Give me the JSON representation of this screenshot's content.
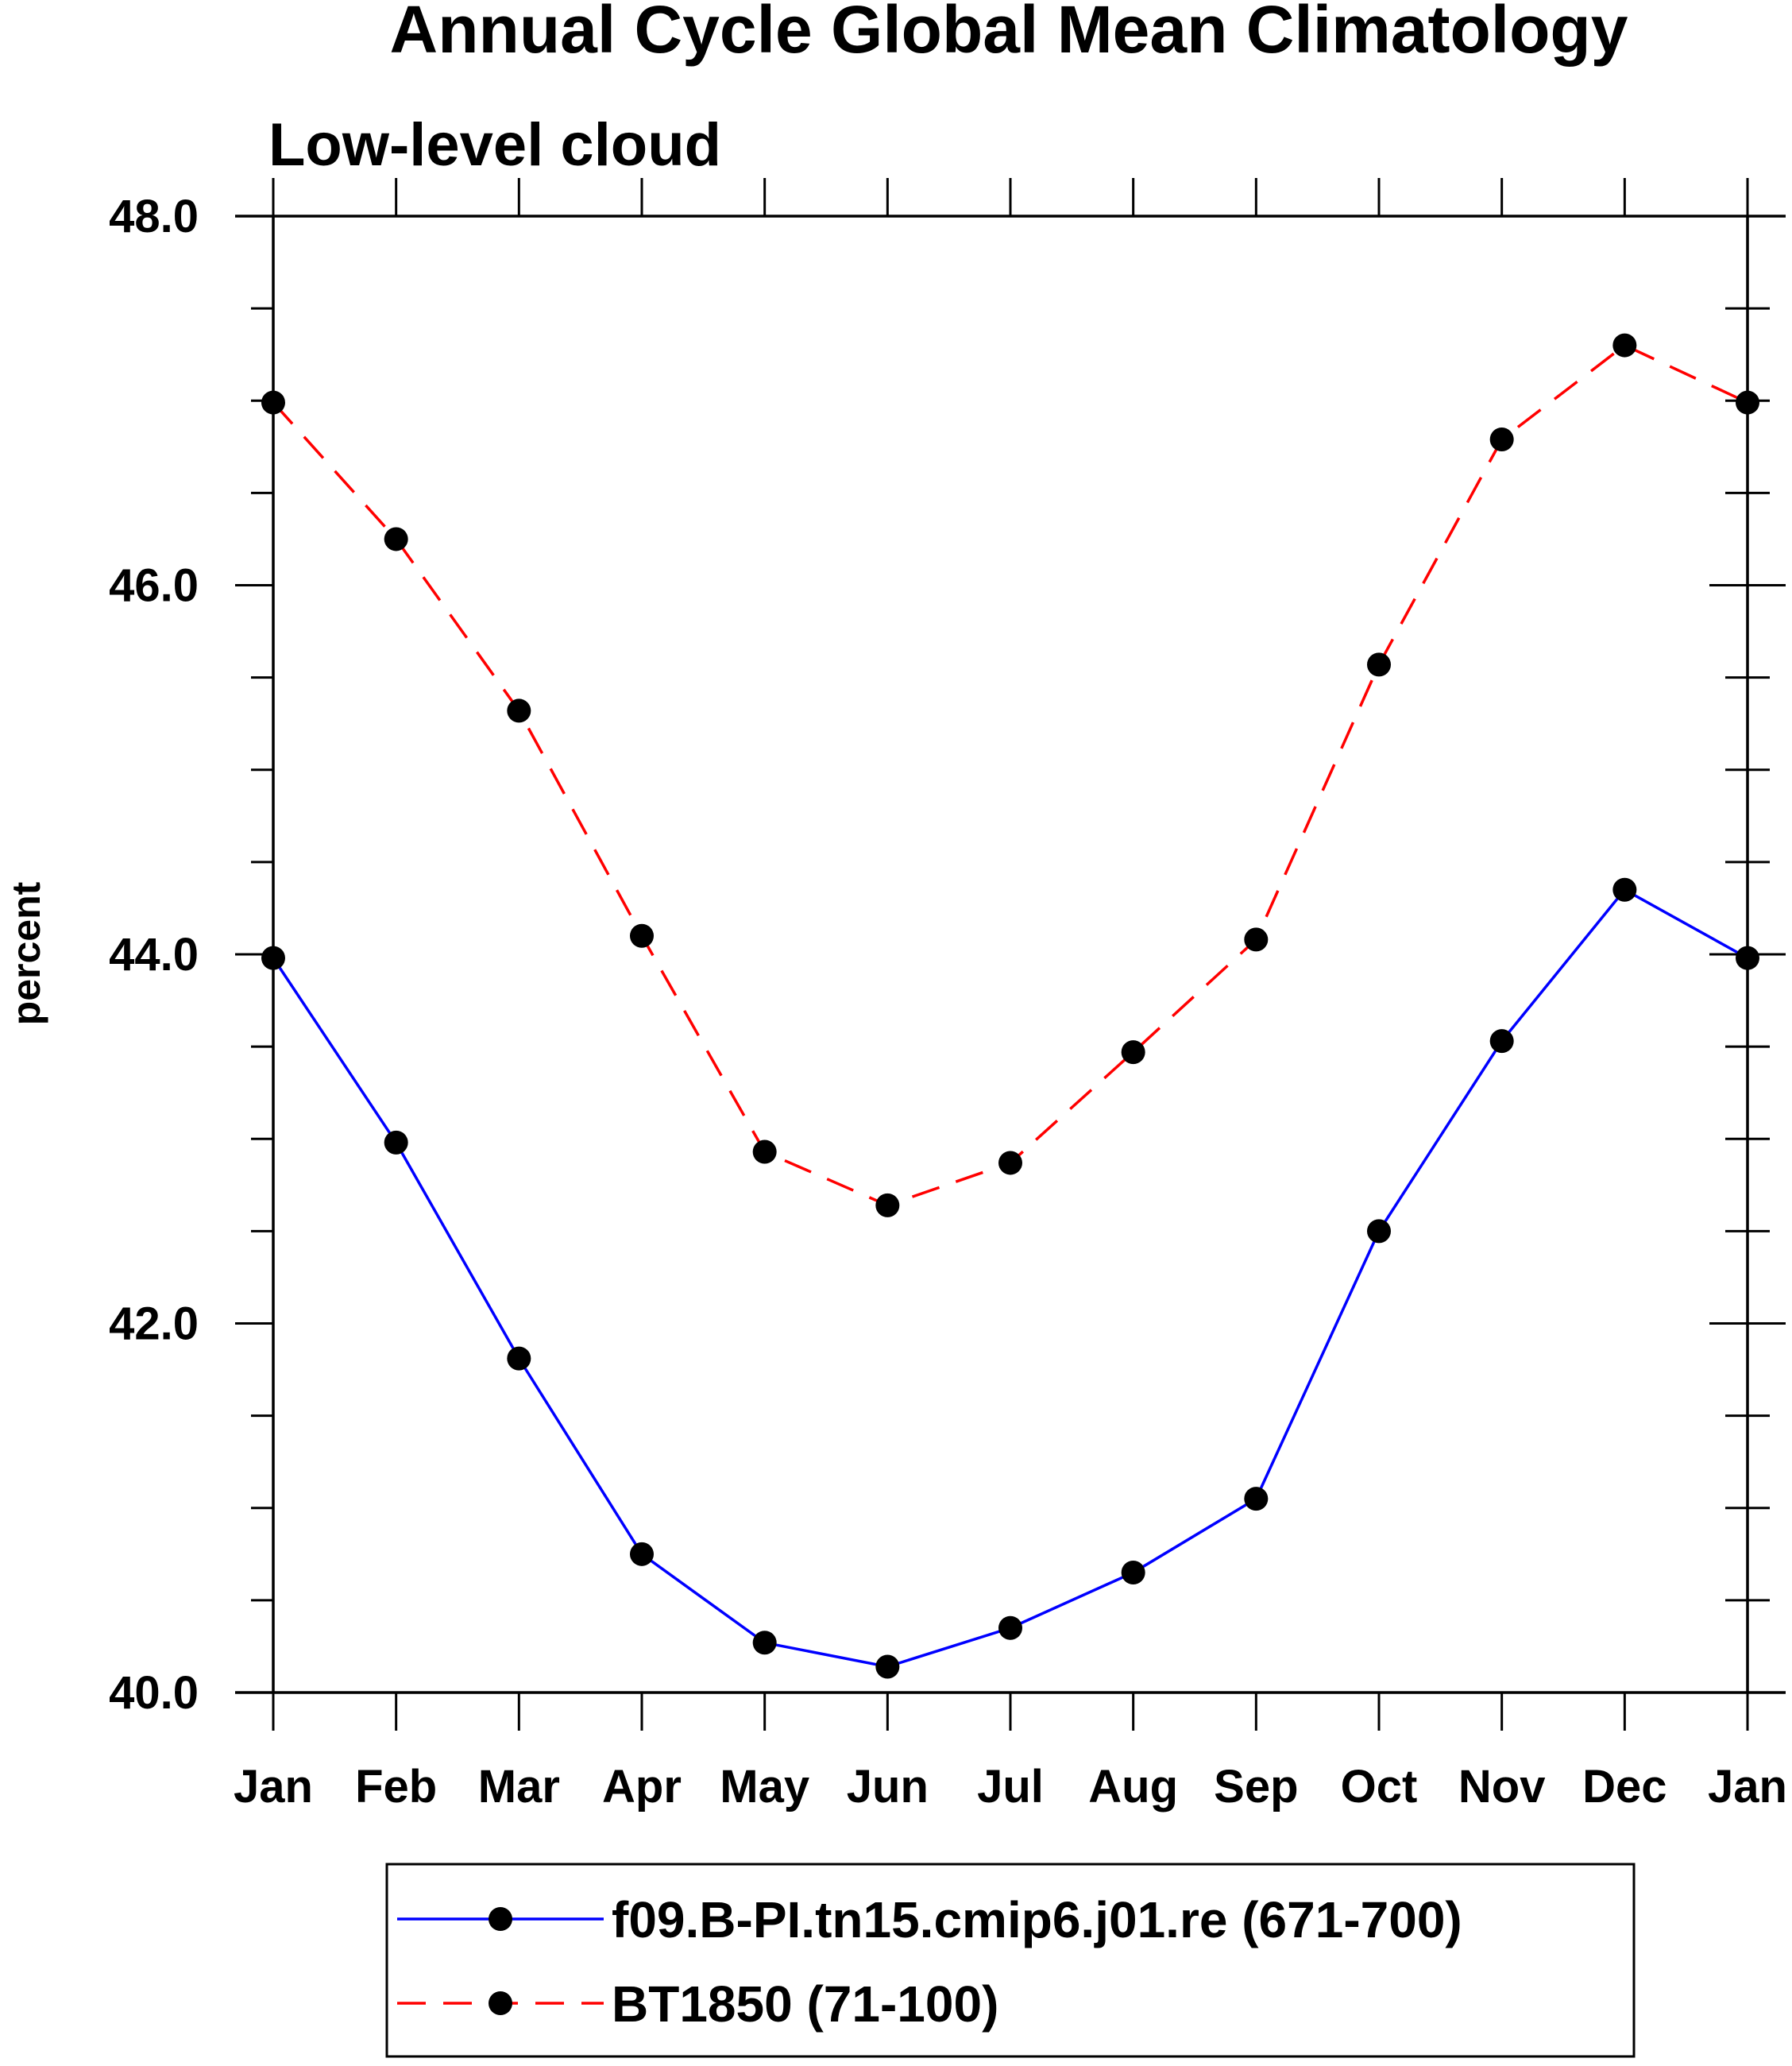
{
  "chart_data": {
    "type": "line",
    "title": "Annual Cycle Global Mean Climatology",
    "subtitle": "Low-level cloud",
    "xlabel": "",
    "ylabel": "percent",
    "categories": [
      "Jan",
      "Feb",
      "Mar",
      "Apr",
      "May",
      "Jun",
      "Jul",
      "Aug",
      "Sep",
      "Oct",
      "Nov",
      "Dec",
      "Jan"
    ],
    "ylim": [
      40.0,
      48.0
    ],
    "yticks": [
      "40.0",
      "42.0",
      "44.0",
      "46.0",
      "48.0"
    ],
    "series": [
      {
        "name": "f09.B-PI.tn15.cmip6.j01.re (671-700)",
        "color": "#0000ff",
        "line_style": "solid",
        "marker": "filled-circle",
        "values": [
          43.98,
          42.98,
          41.81,
          40.75,
          40.27,
          40.14,
          40.35,
          40.65,
          41.05,
          42.5,
          43.53,
          44.35,
          43.98
        ]
      },
      {
        "name": "BT1850 (71-100)",
        "color": "#ff0000",
        "line_style": "dashed",
        "marker": "filled-circle",
        "values": [
          46.99,
          46.25,
          45.32,
          44.1,
          42.93,
          42.64,
          42.87,
          43.47,
          44.08,
          45.57,
          46.79,
          47.3,
          46.99
        ]
      }
    ],
    "legend_position": "bottom"
  }
}
